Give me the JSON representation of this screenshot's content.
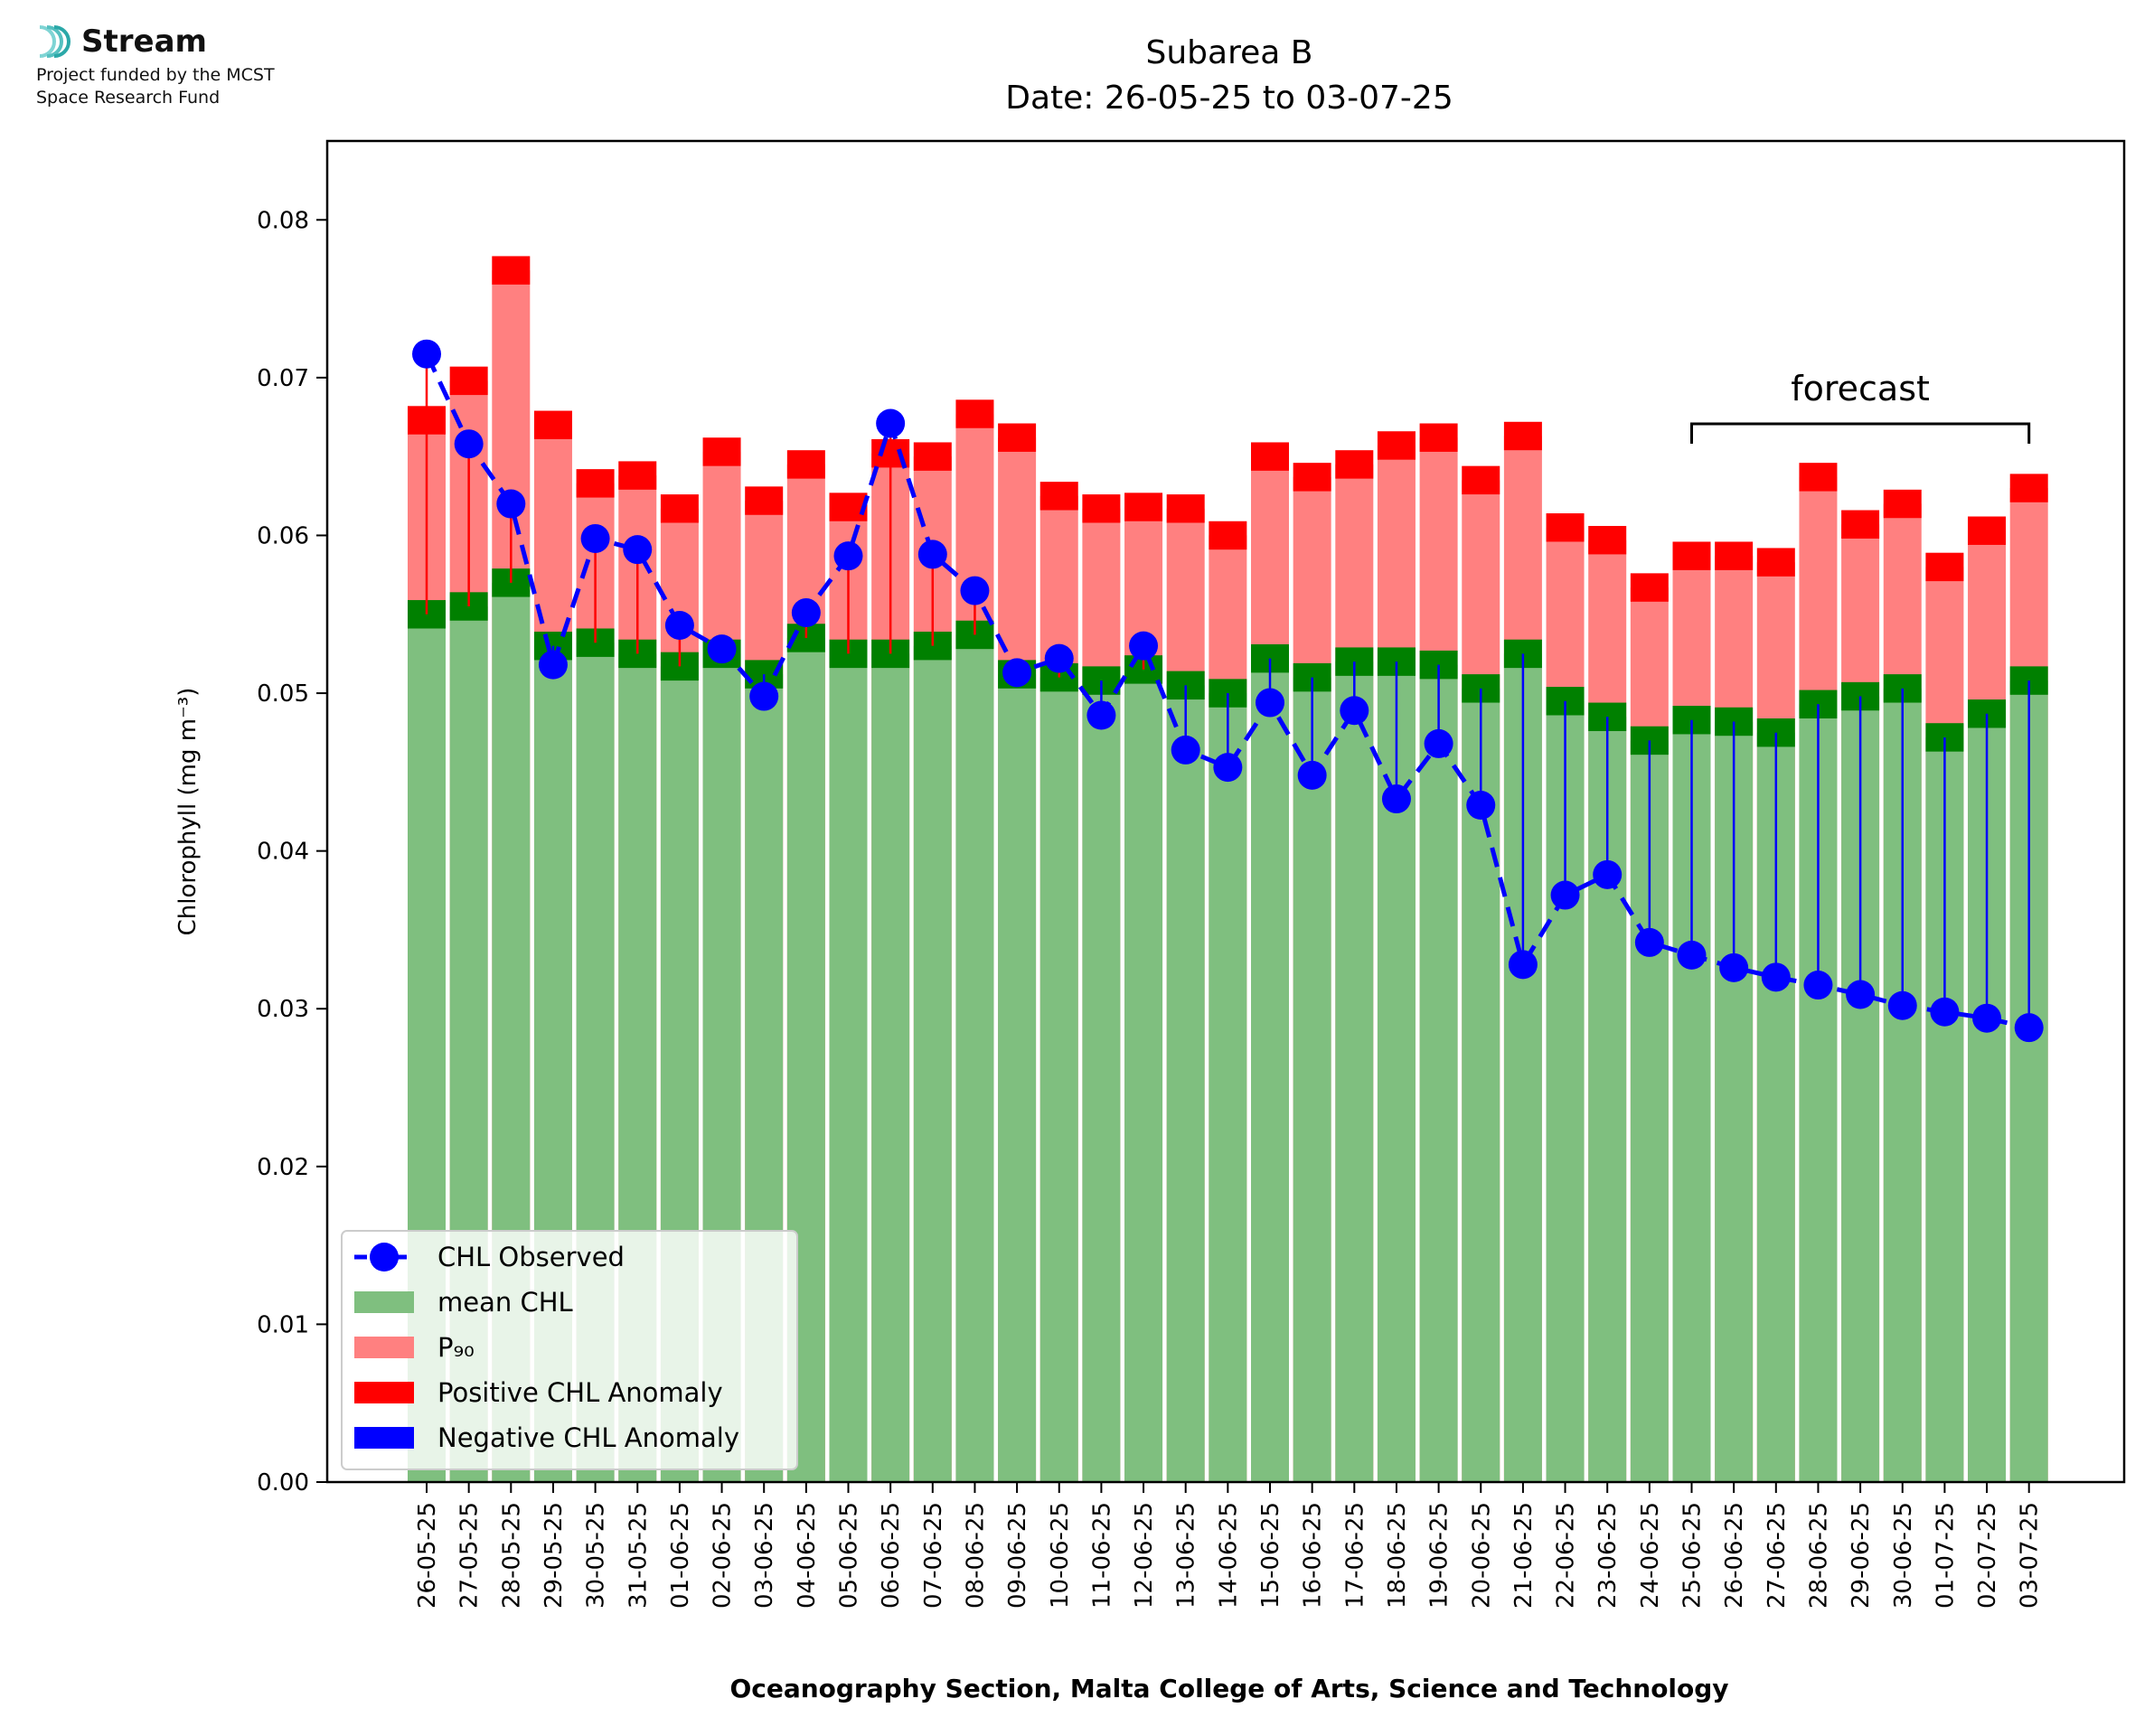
{
  "logo": {
    "brand": "Stream",
    "line1": "Project funded by the MCST",
    "line2": "Space Research Fund"
  },
  "chart_data": {
    "type": "bar",
    "title": "Subarea B",
    "subtitle": "Date: 26-05-25 to 03-07-25",
    "xlabel": "Oceanography Section, Malta College of Arts, Science and Technology",
    "ylabel": "Chlorophyll (mg m⁻³)",
    "ylim": [
      0,
      0.085
    ],
    "yticks": [
      "0.00",
      "0.01",
      "0.02",
      "0.03",
      "0.04",
      "0.05",
      "0.06",
      "0.07",
      "0.08"
    ],
    "ytick_values": [
      0,
      0.01,
      0.02,
      0.03,
      0.04,
      0.05,
      0.06,
      0.07,
      0.08
    ],
    "categories": [
      "26-05-25",
      "27-05-25",
      "28-05-25",
      "29-05-25",
      "30-05-25",
      "31-05-25",
      "01-06-25",
      "02-06-25",
      "03-06-25",
      "04-06-25",
      "05-06-25",
      "06-06-25",
      "07-06-25",
      "08-06-25",
      "09-06-25",
      "10-06-25",
      "11-06-25",
      "12-06-25",
      "13-06-25",
      "14-06-25",
      "15-06-25",
      "16-06-25",
      "17-06-25",
      "18-06-25",
      "19-06-25",
      "20-06-25",
      "21-06-25",
      "22-06-25",
      "23-06-25",
      "24-06-25",
      "25-06-25",
      "26-06-25",
      "27-06-25",
      "28-06-25",
      "29-06-25",
      "30-06-25",
      "01-07-25",
      "02-07-25",
      "03-07-25"
    ],
    "series": [
      {
        "name": "mean CHL",
        "color": "#7fbf7f",
        "values": [
          0.055,
          0.0555,
          0.057,
          0.053,
          0.0532,
          0.0525,
          0.0517,
          0.0525,
          0.0512,
          0.0535,
          0.0525,
          0.0525,
          0.053,
          0.0537,
          0.0512,
          0.051,
          0.0508,
          0.0515,
          0.0505,
          0.05,
          0.0522,
          0.051,
          0.052,
          0.052,
          0.0518,
          0.0503,
          0.0525,
          0.0495,
          0.0485,
          0.047,
          0.0483,
          0.0482,
          0.0475,
          0.0493,
          0.0498,
          0.0503,
          0.0472,
          0.0487,
          0.0508
        ]
      },
      {
        "name": "P₉₀",
        "color": "#ff8080",
        "values": [
          0.0673,
          0.0698,
          0.0768,
          0.067,
          0.0633,
          0.0638,
          0.0617,
          0.0653,
          0.0622,
          0.0645,
          0.0618,
          0.0652,
          0.065,
          0.0677,
          0.0662,
          0.0625,
          0.0617,
          0.0618,
          0.0617,
          0.06,
          0.065,
          0.0637,
          0.0645,
          0.0657,
          0.0662,
          0.0635,
          0.0663,
          0.0605,
          0.0597,
          0.0567,
          0.0587,
          0.0587,
          0.0583,
          0.0637,
          0.0607,
          0.062,
          0.058,
          0.0603,
          0.063
        ]
      },
      {
        "name": "CHL Observed",
        "color": "#0000ff",
        "values": [
          0.0715,
          0.0658,
          0.062,
          0.0518,
          0.0598,
          0.0591,
          0.0543,
          0.0528,
          0.0498,
          0.0551,
          0.0587,
          0.0671,
          0.0588,
          0.0565,
          0.0513,
          0.0522,
          0.0486,
          0.053,
          0.0464,
          0.0453,
          0.0494,
          0.0448,
          0.0489,
          0.0433,
          0.0468,
          0.0429,
          0.0328,
          0.0372,
          0.0385,
          0.0342,
          0.0334,
          0.0326,
          0.032,
          0.0315,
          0.0309,
          0.0302,
          0.0298,
          0.0294,
          0.0288
        ]
      }
    ],
    "band_colors": {
      "positive": "#ff0000",
      "negative": "#0000ff",
      "mean_band": "#008000"
    },
    "annotation": {
      "text": "forecast",
      "from": "25-06-25",
      "to": "03-07-25"
    },
    "legend": {
      "position": "lower-left",
      "items": [
        "CHL Observed",
        "mean CHL",
        "P₉₀",
        "Positive CHL Anomaly",
        "Negative CHL Anomaly"
      ]
    },
    "grid": false
  }
}
